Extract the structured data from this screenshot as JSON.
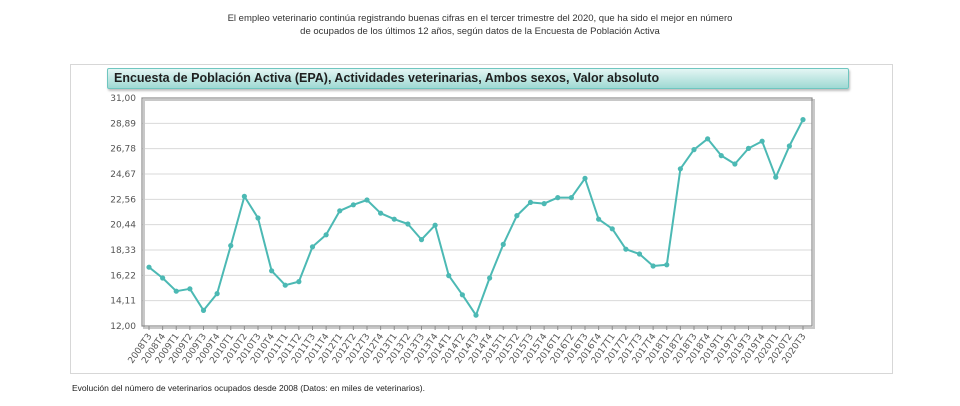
{
  "intro": {
    "line1": "El empleo veterinario continúa registrando buenas cifras en el tercer trimestre del 2020, que ha sido el mejor en número",
    "line2": "de ocupados de los últimos 12 años, según datos de la Encuesta de Población Activa"
  },
  "caption": "Evolución del número de veterinarios ocupados desde 2008 (Datos: en miles de veterinarios).",
  "colors": {
    "line": "#4cb9b4",
    "grid": "#d9d9d9",
    "axis": "#8c8c8c"
  },
  "chart_data": {
    "type": "line",
    "title": "Encuesta de Población Activa (EPA), Actividades veterinarias, Ambos sexos, Valor absoluto",
    "xlabel": "",
    "ylabel": "",
    "ylim": [
      12.0,
      31.0
    ],
    "y_ticks": [
      "12,00",
      "14,11",
      "16,22",
      "18,33",
      "20,44",
      "22,56",
      "24,67",
      "26,78",
      "28,89",
      "31,00"
    ],
    "grid": true,
    "categories": [
      "2008T3",
      "2008T4",
      "2009T1",
      "2009T2",
      "2009T3",
      "2009T4",
      "2010T1",
      "2010T2",
      "2010T3",
      "2010T4",
      "2011T1",
      "2011T2",
      "2011T3",
      "2011T4",
      "2012T1",
      "2012T2",
      "2012T3",
      "2012T4",
      "2013T1",
      "2013T2",
      "2013T3",
      "2013T4",
      "2014T1",
      "2014T2",
      "2014T3",
      "2014T4",
      "2015T1",
      "2015T2",
      "2015T3",
      "2015T4",
      "2016T1",
      "2016T2",
      "2016T3",
      "2016T4",
      "2017T1",
      "2017T2",
      "2017T3",
      "2017T4",
      "2018T1",
      "2018T2",
      "2018T3",
      "2018T4",
      "2019T1",
      "2019T2",
      "2019T3",
      "2019T4",
      "2020T1",
      "2020T2",
      "2020T3"
    ],
    "x_tick_labels": [
      "2008T3",
      "2008T4",
      "2009T1",
      "2009T2",
      "2009T3",
      "2009T4",
      "2010T1",
      "2010T2",
      "2010T3",
      "2010T4",
      "2011T1",
      "2011T2",
      "2011T3",
      "2011T4",
      "2012T1",
      "2012T2",
      "2012T3",
      "2012T4",
      "2013T1",
      "2013T2",
      "2013T3",
      "2013T4",
      "2014T1",
      "2014T2",
      "2014T3",
      "2014T4",
      "2015T1",
      "2015T2",
      "2015T3",
      "2015T4",
      "2016T1",
      "2016T2",
      "2016T3",
      "2016T4",
      "2017T1",
      "2017T2",
      "2017T3",
      "2017T4",
      "2018T1",
      "2018T2",
      "2018T3",
      "2018T4",
      "2019T1",
      "2019T2",
      "2019T3",
      "2019T4",
      "2020T1",
      "2020T2",
      "2020T3"
    ],
    "series": [
      {
        "name": "Actividades veterinarias, Ambos sexos",
        "values": [
          16.9,
          16.0,
          14.9,
          15.1,
          13.3,
          14.7,
          18.7,
          22.8,
          21.0,
          16.6,
          15.4,
          15.7,
          18.6,
          19.6,
          21.6,
          22.1,
          22.5,
          21.4,
          20.9,
          20.5,
          19.2,
          20.4,
          16.2,
          14.6,
          12.9,
          16.0,
          18.8,
          21.2,
          22.3,
          22.2,
          22.7,
          22.7,
          24.3,
          20.9,
          20.1,
          18.4,
          18.0,
          17.0,
          17.1,
          25.1,
          26.7,
          27.6,
          26.2,
          25.5,
          26.8,
          27.4,
          24.4,
          27.0,
          29.2
        ]
      }
    ]
  }
}
